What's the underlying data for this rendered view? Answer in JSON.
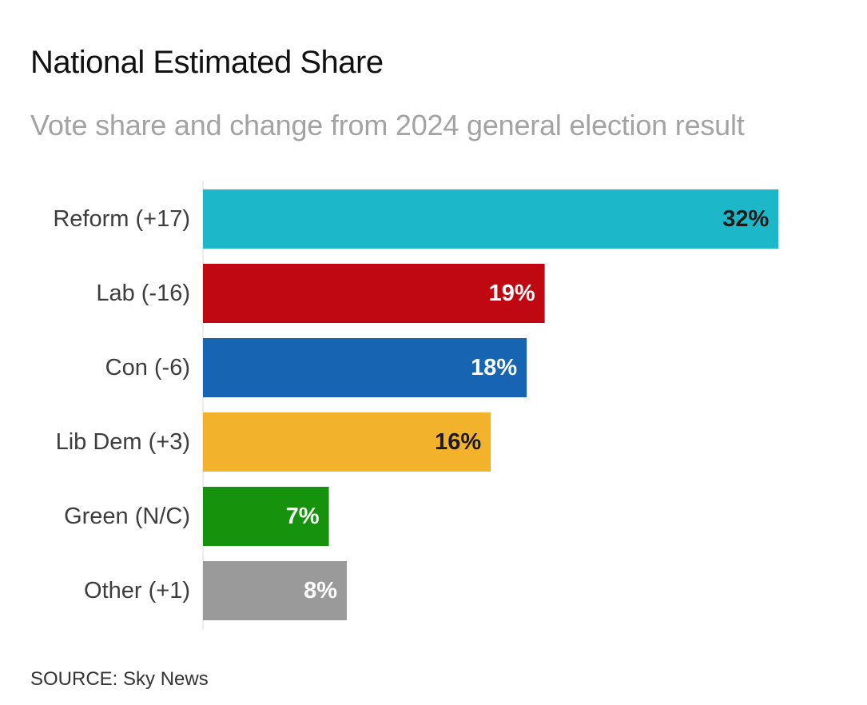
{
  "header": {
    "title": "National Estimated Share",
    "subtitle": "Vote share and change from 2024 general election result"
  },
  "footer": {
    "source": "SOURCE: Sky News"
  },
  "chart_data": {
    "type": "bar",
    "orientation": "horizontal",
    "title": "National Estimated Share",
    "subtitle": "Vote share and change from 2024 general election result",
    "xlabel": "",
    "ylabel": "",
    "xlim": [
      0,
      33.5
    ],
    "grid": false,
    "legend": "none",
    "categories": [
      "Reform (+17)",
      "Lab (-16)",
      "Con (-6)",
      "Lib Dem (+3)",
      "Green (N/C)",
      "Other (+1)"
    ],
    "values": [
      32,
      19,
      18,
      16,
      7,
      8
    ],
    "value_labels": [
      "32%",
      "19%",
      "18%",
      "16%",
      "7%",
      "8%"
    ],
    "colors": [
      "#1cb8c9",
      "#c00813",
      "#1764b3",
      "#f3b22b",
      "#16920c",
      "#9a9a9a"
    ],
    "label_colors": [
      "#1a1a1a",
      "#ffffff",
      "#ffffff",
      "#1a1a1a",
      "#ffffff",
      "#ffffff"
    ]
  }
}
